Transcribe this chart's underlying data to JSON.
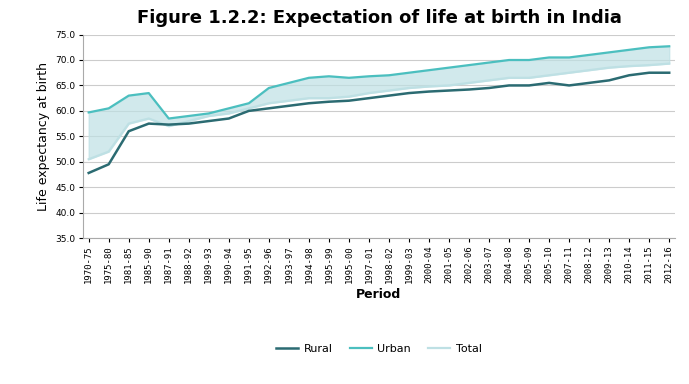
{
  "title": "Figure 1.2.2: Expectation of life at birth in India",
  "xlabel": "Period",
  "ylabel": "Life expectancy at birth",
  "periods": [
    "1970-75",
    "1975-80",
    "1981-85",
    "1985-90",
    "1987-91",
    "1988-92",
    "1989-93",
    "1990-94",
    "1991-95",
    "1992-96",
    "1993-97",
    "1994-98",
    "1995-99",
    "1995-00",
    "1997-01",
    "1998-02",
    "1999-03",
    "2000-04",
    "2001-05",
    "2002-06",
    "2003-07",
    "2004-08",
    "2005-09",
    "2005-10",
    "2007-11",
    "2008-12",
    "2009-13",
    "2010-14",
    "2011-15",
    "2012-16"
  ],
  "rural": [
    47.8,
    49.5,
    56.0,
    57.5,
    57.3,
    57.5,
    58.0,
    58.5,
    60.0,
    60.5,
    61.0,
    61.5,
    61.8,
    62.0,
    62.5,
    63.0,
    63.5,
    63.8,
    64.0,
    64.2,
    64.5,
    65.0,
    65.0,
    65.5,
    65.0,
    65.5,
    66.0,
    67.0,
    67.5,
    67.5
  ],
  "urban": [
    59.7,
    60.5,
    63.0,
    63.5,
    58.5,
    59.0,
    59.5,
    60.5,
    61.5,
    64.5,
    65.5,
    66.5,
    66.8,
    66.5,
    66.8,
    67.0,
    67.5,
    68.0,
    68.5,
    69.0,
    69.5,
    70.0,
    70.0,
    70.5,
    70.5,
    71.0,
    71.5,
    72.0,
    72.5,
    72.7
  ],
  "total": [
    50.5,
    52.0,
    57.5,
    58.5,
    57.0,
    58.0,
    59.0,
    59.5,
    60.5,
    61.5,
    62.0,
    62.5,
    62.5,
    62.8,
    63.5,
    64.0,
    64.5,
    64.8,
    65.0,
    65.5,
    66.0,
    66.5,
    66.5,
    67.0,
    67.5,
    68.0,
    68.5,
    68.8,
    69.0,
    69.3
  ],
  "rural_color": "#2B6B72",
  "urban_color": "#4BBFBF",
  "total_color": "#BEE0E4",
  "ylim": [
    35.0,
    75.0
  ],
  "yticks": [
    35.0,
    40.0,
    45.0,
    50.0,
    55.0,
    60.0,
    65.0,
    70.0,
    75.0
  ],
  "background_color": "#FFFFFF",
  "plot_bg_color": "#FFFFFF",
  "grid_color": "#CCCCCC",
  "title_fontsize": 13,
  "axis_label_fontsize": 9,
  "tick_fontsize": 6.5,
  "legend_fontsize": 8
}
